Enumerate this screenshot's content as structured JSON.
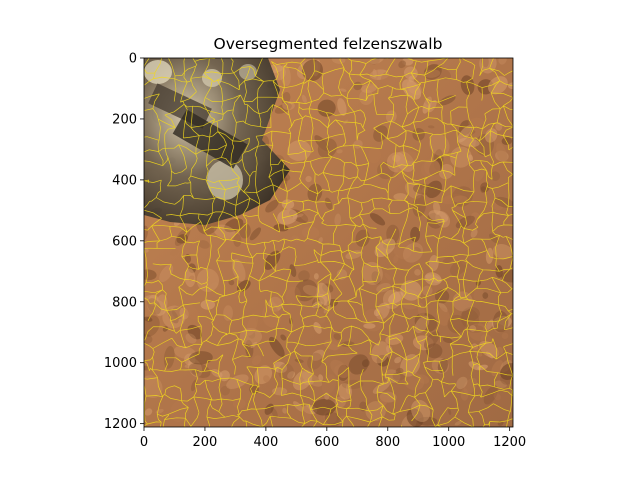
{
  "chart_data": {
    "type": "image",
    "title": "Oversegmented felzenszwalb",
    "xlim": [
      0,
      1211
    ],
    "ylim": [
      1211,
      0
    ],
    "x_ticks": [
      0,
      200,
      400,
      600,
      800,
      1000,
      1200
    ],
    "y_ticks": [
      0,
      200,
      400,
      600,
      800,
      1000,
      1200
    ],
    "x_tick_labels": [
      "0",
      "200",
      "400",
      "600",
      "800",
      "1000",
      "1200"
    ],
    "y_tick_labels": [
      "0",
      "200",
      "400",
      "600",
      "800",
      "1000",
      "1200"
    ],
    "image_content": "martian-rock-surface-with-rover-hardware",
    "segment_boundary_color": "#f2d81c",
    "colors": {
      "rock_base": "#b67a4e",
      "rock_light": "#d49a68",
      "rock_dark": "#6e4326",
      "hardware_dark": "#3a3228",
      "hardware_light": "#c9bfa6"
    }
  }
}
